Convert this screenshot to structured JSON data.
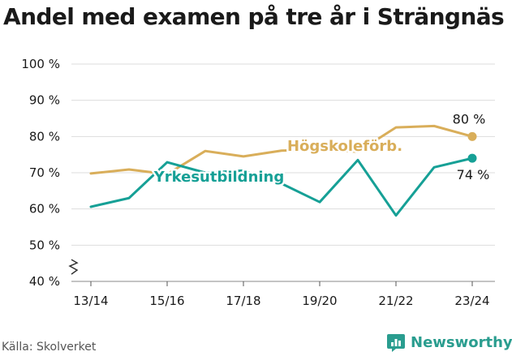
{
  "header": {
    "title": "Andel med examen på tre år i Strängnäs"
  },
  "footer": {
    "source": "Källa: Skolverket",
    "brand": "Newsworthy"
  },
  "colors": {
    "hogskole": "#d9ae5a",
    "yrkes": "#16a096",
    "grid": "#dddddd",
    "text": "#1a1a1a"
  },
  "chart_data": {
    "type": "line",
    "title": "Andel med examen på tre år i Strängnäs",
    "xlabel": "",
    "ylabel": "",
    "categories": [
      "13/14",
      "14/15",
      "15/16",
      "16/17",
      "17/18",
      "18/19",
      "19/20",
      "20/21",
      "21/22",
      "22/23",
      "23/24"
    ],
    "x_tick_labels": [
      "13/14",
      "15/16",
      "17/18",
      "19/20",
      "21/22",
      "23/24"
    ],
    "y_ticks": [
      40,
      50,
      60,
      70,
      80,
      90,
      100
    ],
    "y_tick_labels": [
      "40 %",
      "50 %",
      "60 %",
      "70 %",
      "80 %",
      "90 %",
      "100 %"
    ],
    "ylim": [
      40,
      100
    ],
    "grid": true,
    "axis_break": true,
    "series": [
      {
        "name": "Högskoleförb.",
        "color": "#d9ae5a",
        "values": [
          69.8,
          70.9,
          69.6,
          76.0,
          74.5,
          76.1,
          76.4,
          75.8,
          82.5,
          82.9,
          80.0
        ],
        "end_label": "80 %"
      },
      {
        "name": "Yrkesutbildning",
        "color": "#16a096",
        "values": [
          60.6,
          63.0,
          72.9,
          70.0,
          70.6,
          67.0,
          61.9,
          73.5,
          58.2,
          71.5,
          74.0
        ],
        "end_label": "74 %"
      }
    ]
  }
}
